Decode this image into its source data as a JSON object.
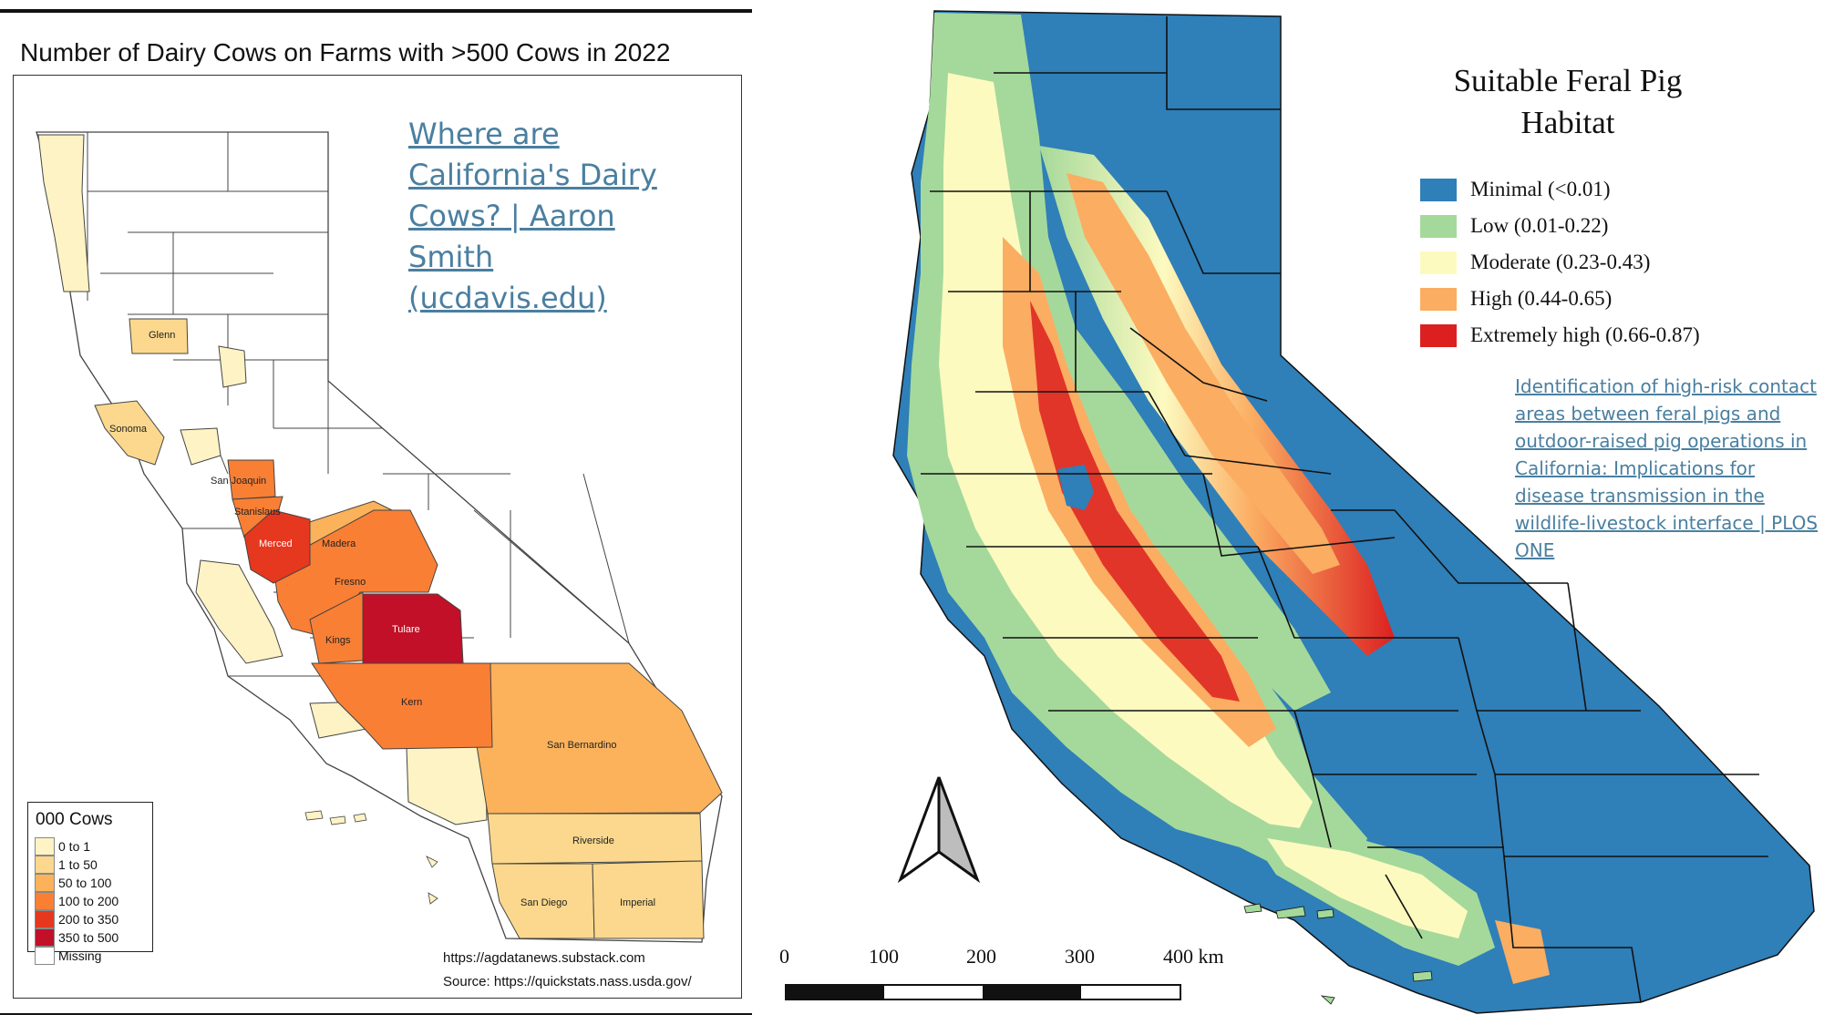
{
  "left_map": {
    "title": "Number of Dairy Cows on Farms with >500 Cows in 2022",
    "link_text": "Where are California's Dairy Cows? | Aaron Smith (ucdavis.edu)",
    "legend": {
      "title": "000 Cows",
      "items": [
        {
          "label": "0 to 1",
          "color": "#fef3c4"
        },
        {
          "label": "1 to 50",
          "color": "#fbd88d"
        },
        {
          "label": "50 to 100",
          "color": "#fbb25b"
        },
        {
          "label": "100 to 200",
          "color": "#f97f35"
        },
        {
          "label": "200 to 350",
          "color": "#e6371f"
        },
        {
          "label": "350 to 500",
          "color": "#c11027"
        },
        {
          "label": "Missing",
          "color": "#ffffff"
        }
      ]
    },
    "source_line_1": "https://agdatanews.substack.com",
    "source_line_2": "Source: https://quickstats.nass.usda.gov/",
    "county_labels": [
      "Glenn",
      "Sonoma",
      "San Joaquin",
      "Stanislaus",
      "Merced",
      "Madera",
      "Fresno",
      "Kings",
      "Tulare",
      "Kern",
      "San Bernardino",
      "Riverside",
      "San Diego",
      "Imperial"
    ]
  },
  "right_map": {
    "title": "Suitable Feral Pig Habitat",
    "legend": [
      {
        "label": "Minimal (<0.01)",
        "color": "#2f7fb8"
      },
      {
        "label": "Low (0.01-0.22)",
        "color": "#a5d99b"
      },
      {
        "label": "Moderate (0.23-0.43)",
        "color": "#fdfac0"
      },
      {
        "label": "High (0.44-0.65)",
        "color": "#fbad62"
      },
      {
        "label": "Extremely high (0.66-0.87)",
        "color": "#dc2020"
      }
    ],
    "link_text": "Identification of high-risk contact areas between feral pigs and outdoor-raised pig operations in California: Implications for disease transmission in the wildlife-livestock interface | PLOS ONE",
    "scale_labels": [
      "0",
      "100",
      "200",
      "300",
      "400 km"
    ]
  }
}
